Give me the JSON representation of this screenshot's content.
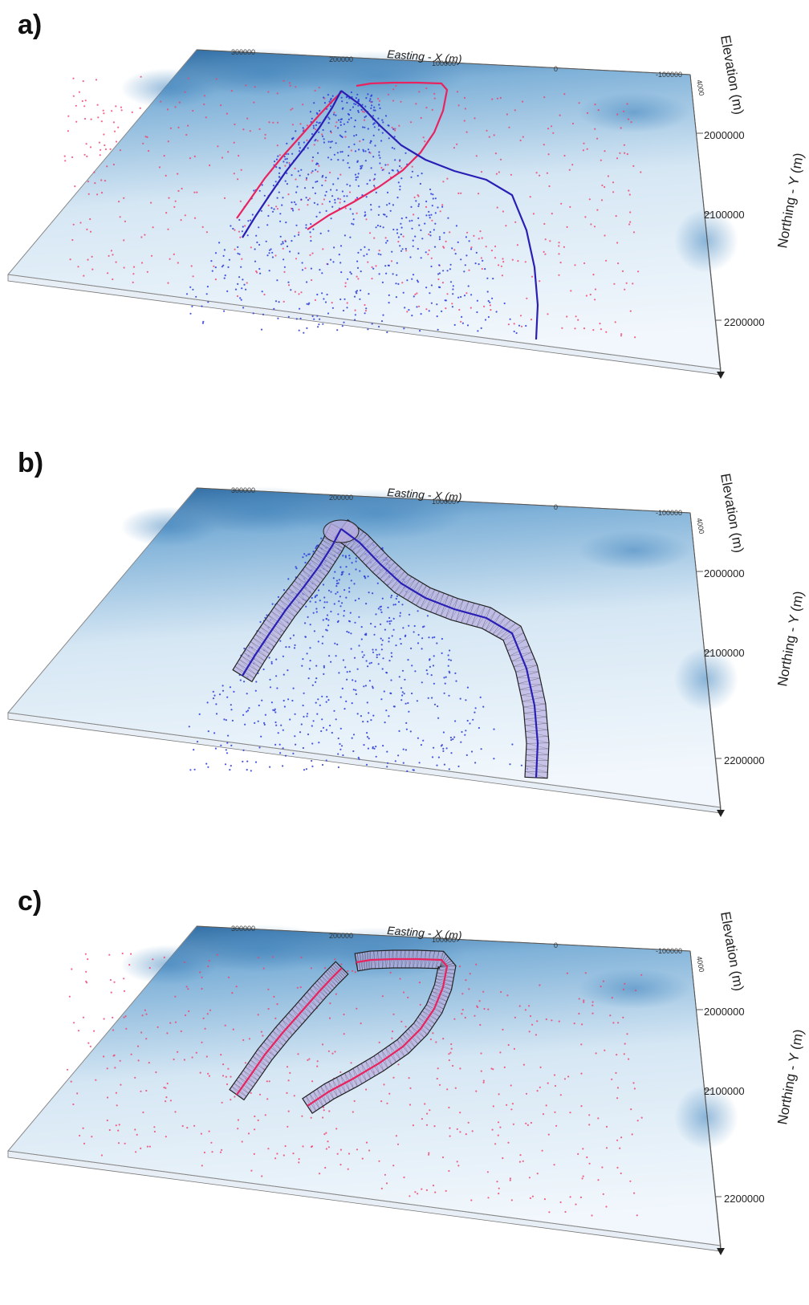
{
  "panels": [
    {
      "id": "a",
      "label": "a)",
      "contents": [
        "red-lines",
        "blue-lines",
        "red-points",
        "blue-points"
      ]
    },
    {
      "id": "b",
      "label": "b)",
      "contents": [
        "blue-lines",
        "blue-points",
        "blue-mesh"
      ]
    },
    {
      "id": "c",
      "label": "c)",
      "contents": [
        "red-lines",
        "red-points",
        "red-mesh"
      ]
    }
  ],
  "axes": {
    "x_title": "Easting - X (m)",
    "x_ticks": [
      "300000",
      "200000",
      "100000",
      "0",
      "-100000"
    ],
    "y_title": "Northing - Y (m)",
    "y_ticks": [
      "2000000",
      "2100000",
      "2200000"
    ],
    "z_title": "Elevation (m)",
    "z_tick": "4000"
  },
  "colors": {
    "terrain_dark": "#1f5f9a",
    "terrain_mid": "#7fb1d8",
    "terrain_light": "#f1f7fc",
    "red_line": "#e8235f",
    "blue_line": "#2a1fb5",
    "red_point": "#f0406e",
    "blue_point": "#2b3bd8",
    "mesh_fill": "#b8aee0",
    "mesh_line": "#222222"
  }
}
